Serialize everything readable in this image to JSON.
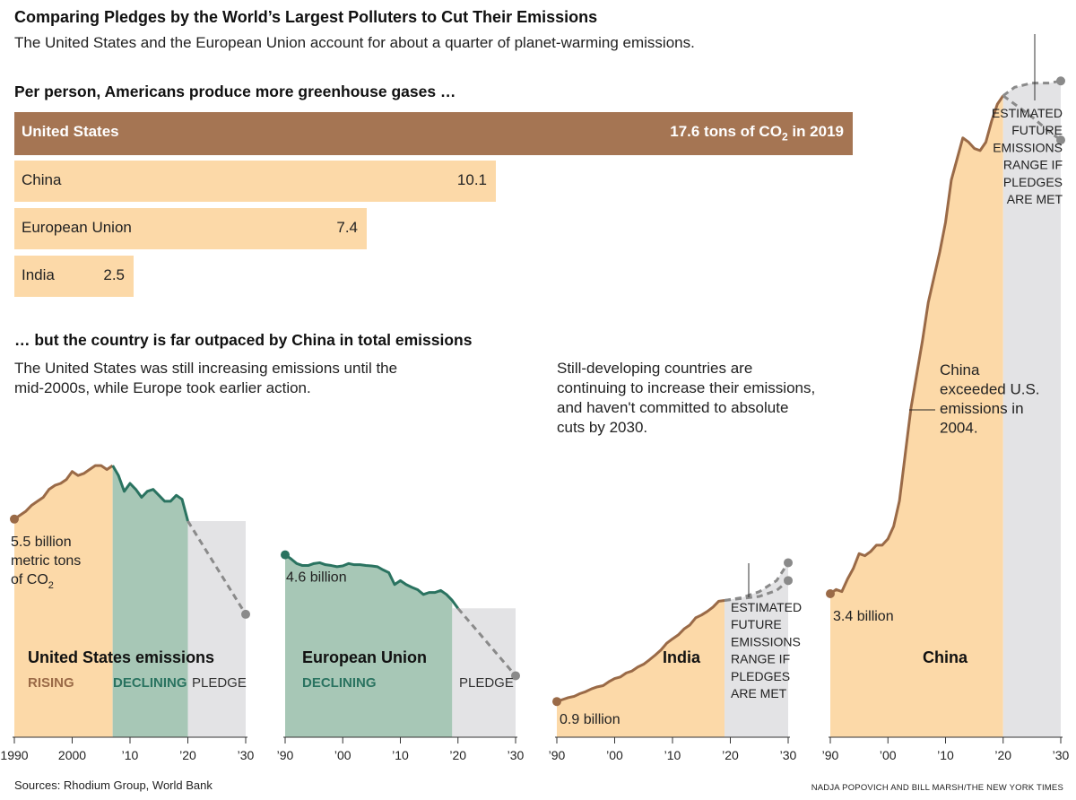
{
  "header": {
    "title": "Comparing Pledges by the World’s Largest Polluters to Cut Their Emissions",
    "subtitle": "The United States and the European Union account for about a quarter of planet-warming emissions."
  },
  "section1": {
    "heading": "Per person, Americans produce more greenhouse gases …"
  },
  "section2": {
    "heading": "… but the country is far outpaced by China in total emissions",
    "note_left_1": "The United States was still increasing emissions until the",
    "note_left_2": "mid-2000s, while Europe took earlier action.",
    "note_right_1": "Still-developing countries are",
    "note_right_2": "continuing to increase their emissions,",
    "note_right_3": "and haven't committed to absolute",
    "note_right_4": "cuts by 2030."
  },
  "footer": {
    "sources": "Sources: Rhodium Group, World Bank",
    "credit": "NADJA POPOVICH AND BILL MARSH/THE NEW YORK TIMES"
  },
  "colors": {
    "rising": "#fcd9a8",
    "us_bar": "#a57553",
    "declining": "#a7c7b6",
    "pledge": "#e3e3e5",
    "brown_line": "#9a6a47",
    "green_line": "#2a7360",
    "dash": "#8a8a8a"
  },
  "chart_data": [
    {
      "type": "bar",
      "title": "Per person, Americans produce more greenhouse gases …",
      "categories": [
        "United States",
        "China",
        "European Union",
        "India"
      ],
      "values": [
        17.6,
        10.1,
        7.4,
        2.5
      ],
      "value_labels": [
        "17.6 tons of CO2 in 2019",
        "10.1",
        "7.4",
        "2.5"
      ],
      "unit": "tons of CO2 per person, 2019"
    },
    {
      "type": "area",
      "title": "United States emissions",
      "unit": "billion metric tons of CO2",
      "phases": [
        {
          "label": "RISING",
          "from": 1990,
          "to": 2007
        },
        {
          "label": "DECLINING",
          "from": 2007,
          "to": 2020
        },
        {
          "label": "PLEDGE",
          "from": 2020,
          "to": 2030
        }
      ],
      "x_ticks": [
        "1990",
        "2000",
        "’10",
        "’20",
        "’30"
      ],
      "x_tick_values": [
        1990,
        2000,
        2010,
        2020,
        2030
      ],
      "ylim": [
        0,
        8.3
      ],
      "series": [
        {
          "values": [
            [
              1990,
              5.5
            ],
            [
              1991,
              5.6
            ],
            [
              1992,
              5.7
            ],
            [
              1993,
              5.85
            ],
            [
              1994,
              5.95
            ],
            [
              1995,
              6.05
            ],
            [
              1996,
              6.25
            ],
            [
              1997,
              6.35
            ],
            [
              1998,
              6.4
            ],
            [
              1999,
              6.5
            ],
            [
              2000,
              6.7
            ],
            [
              2001,
              6.6
            ],
            [
              2002,
              6.65
            ],
            [
              2003,
              6.75
            ],
            [
              2004,
              6.85
            ],
            [
              2005,
              6.85
            ],
            [
              2006,
              6.75
            ],
            [
              2007,
              6.85
            ],
            [
              2008,
              6.6
            ],
            [
              2009,
              6.2
            ],
            [
              2010,
              6.4
            ],
            [
              2011,
              6.25
            ],
            [
              2012,
              6.05
            ],
            [
              2013,
              6.2
            ],
            [
              2014,
              6.25
            ],
            [
              2015,
              6.1
            ],
            [
              2016,
              5.95
            ],
            [
              2017,
              5.95
            ],
            [
              2018,
              6.1
            ],
            [
              2019,
              6.0
            ],
            [
              2020,
              5.45
            ]
          ]
        },
        {
          "name": "pledge",
          "values": [
            [
              2020,
              5.45
            ],
            [
              2030,
              3.1
            ]
          ]
        }
      ],
      "start_label": [
        "5.5 billion",
        "metric tons",
        "of CO2"
      ]
    },
    {
      "type": "area",
      "title": "European Union",
      "unit": "billion metric tons of CO2",
      "phases": [
        {
          "label": "DECLINING",
          "from": 1990,
          "to": 2019
        },
        {
          "label": "PLEDGE",
          "from": 2019,
          "to": 2030
        }
      ],
      "x_ticks": [
        "’90",
        "’00",
        "’10",
        "’20",
        "’30"
      ],
      "x_tick_values": [
        1990,
        2000,
        2010,
        2020,
        2030
      ],
      "ylim": [
        0,
        8.3
      ],
      "series": [
        {
          "values": [
            [
              1990,
              4.6
            ],
            [
              1991,
              4.5
            ],
            [
              1992,
              4.38
            ],
            [
              1993,
              4.33
            ],
            [
              1994,
              4.33
            ],
            [
              1995,
              4.38
            ],
            [
              1996,
              4.4
            ],
            [
              1997,
              4.35
            ],
            [
              1998,
              4.33
            ],
            [
              1999,
              4.3
            ],
            [
              2000,
              4.32
            ],
            [
              2001,
              4.38
            ],
            [
              2002,
              4.35
            ],
            [
              2003,
              4.35
            ],
            [
              2004,
              4.33
            ],
            [
              2005,
              4.32
            ],
            [
              2006,
              4.3
            ],
            [
              2007,
              4.22
            ],
            [
              2008,
              4.15
            ],
            [
              2009,
              3.85
            ],
            [
              2010,
              3.95
            ],
            [
              2011,
              3.85
            ],
            [
              2012,
              3.78
            ],
            [
              2013,
              3.72
            ],
            [
              2014,
              3.6
            ],
            [
              2015,
              3.65
            ],
            [
              2016,
              3.65
            ],
            [
              2017,
              3.7
            ],
            [
              2018,
              3.6
            ],
            [
              2019,
              3.45
            ],
            [
              2020,
              3.25
            ]
          ]
        },
        {
          "name": "pledge",
          "values": [
            [
              2020,
              3.25
            ],
            [
              2030,
              1.55
            ]
          ]
        }
      ],
      "start_label": [
        "4.6 billion"
      ]
    },
    {
      "type": "area",
      "title": "India",
      "unit": "billion metric tons of CO2",
      "x_ticks": [
        "’90",
        "’00",
        "’10",
        "’20",
        "’30"
      ],
      "x_tick_values": [
        1990,
        2000,
        2010,
        2020,
        2030
      ],
      "ylim": [
        0,
        8.3
      ],
      "series": [
        {
          "values": [
            [
              1990,
              0.9
            ],
            [
              1991,
              0.95
            ],
            [
              1992,
              1.0
            ],
            [
              1993,
              1.03
            ],
            [
              1994,
              1.1
            ],
            [
              1995,
              1.15
            ],
            [
              1996,
              1.22
            ],
            [
              1997,
              1.27
            ],
            [
              1998,
              1.3
            ],
            [
              1999,
              1.4
            ],
            [
              2000,
              1.48
            ],
            [
              2001,
              1.52
            ],
            [
              2002,
              1.62
            ],
            [
              2003,
              1.67
            ],
            [
              2004,
              1.77
            ],
            [
              2005,
              1.84
            ],
            [
              2006,
              1.95
            ],
            [
              2007,
              2.07
            ],
            [
              2008,
              2.2
            ],
            [
              2009,
              2.37
            ],
            [
              2010,
              2.48
            ],
            [
              2011,
              2.58
            ],
            [
              2012,
              2.73
            ],
            [
              2013,
              2.83
            ],
            [
              2014,
              3.01
            ],
            [
              2015,
              3.08
            ],
            [
              2016,
              3.17
            ],
            [
              2017,
              3.28
            ],
            [
              2018,
              3.43
            ],
            [
              2019,
              3.45
            ]
          ]
        },
        {
          "name": "pledge-high",
          "values": [
            [
              2019,
              3.45
            ],
            [
              2022,
              3.52
            ],
            [
              2025,
              3.67
            ],
            [
              2028,
              3.95
            ],
            [
              2030,
              4.4
            ]
          ]
        },
        {
          "name": "pledge-low",
          "values": [
            [
              2019,
              3.45
            ],
            [
              2022,
              3.5
            ],
            [
              2025,
              3.55
            ],
            [
              2028,
              3.7
            ],
            [
              2030,
              3.95
            ]
          ]
        }
      ],
      "start_label": [
        "0.9 billion"
      ],
      "annotation": [
        "ESTIMATED",
        "FUTURE",
        "EMISSIONS",
        "RANGE IF",
        "PLEDGES",
        "ARE MET"
      ]
    },
    {
      "type": "area",
      "title": "China",
      "unit": "billion metric tons of CO2",
      "x_ticks": [
        "’90",
        "’00",
        "’10",
        "’20",
        "’30"
      ],
      "x_tick_values": [
        1990,
        2000,
        2010,
        2020,
        2030
      ],
      "ylim": [
        0,
        17
      ],
      "series": [
        {
          "values": [
            [
              1990,
              3.4
            ],
            [
              1991,
              3.5
            ],
            [
              1992,
              3.45
            ],
            [
              1993,
              3.75
            ],
            [
              1994,
              4.0
            ],
            [
              1995,
              4.35
            ],
            [
              1996,
              4.3
            ],
            [
              1997,
              4.4
            ],
            [
              1998,
              4.55
            ],
            [
              1999,
              4.55
            ],
            [
              2000,
              4.7
            ],
            [
              2001,
              5.0
            ],
            [
              2002,
              5.6
            ],
            [
              2003,
              6.7
            ],
            [
              2004,
              7.8
            ],
            [
              2005,
              8.6
            ],
            [
              2006,
              9.4
            ],
            [
              2007,
              10.3
            ],
            [
              2008,
              10.9
            ],
            [
              2009,
              11.5
            ],
            [
              2010,
              12.2
            ],
            [
              2011,
              13.2
            ],
            [
              2012,
              13.7
            ],
            [
              2013,
              14.2
            ],
            [
              2014,
              14.1
            ],
            [
              2015,
              13.95
            ],
            [
              2016,
              13.9
            ],
            [
              2017,
              14.1
            ],
            [
              2018,
              14.6
            ],
            [
              2019,
              15.0
            ],
            [
              2020,
              15.2
            ]
          ]
        },
        {
          "name": "pledge-high",
          "values": [
            [
              2020,
              15.2
            ],
            [
              2022,
              15.4
            ],
            [
              2025,
              15.5
            ],
            [
              2028,
              15.5
            ],
            [
              2030,
              15.55
            ]
          ]
        },
        {
          "name": "pledge-low",
          "values": [
            [
              2020,
              15.2
            ],
            [
              2022,
              15.0
            ],
            [
              2025,
              14.7
            ],
            [
              2028,
              14.35
            ],
            [
              2030,
              14.15
            ]
          ]
        }
      ],
      "start_label": [
        "3.4 billion"
      ],
      "annotation": [
        "ESTIMATED",
        "FUTURE",
        "EMISSIONS",
        "RANGE IF",
        "PLEDGES",
        "ARE MET"
      ],
      "callout": [
        "China",
        "exceeded U.S.",
        "emissions in",
        "2004."
      ]
    }
  ]
}
